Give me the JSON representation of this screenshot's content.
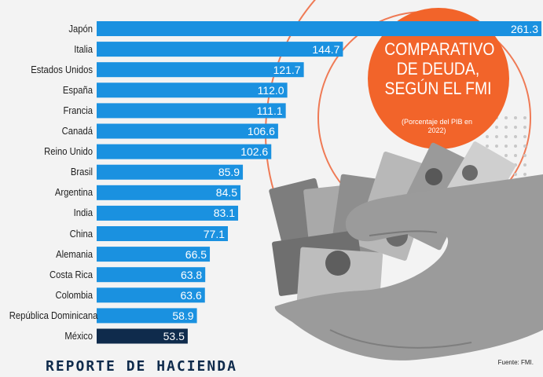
{
  "header": {
    "title": "COMPARATIVO DE DEUDA, SEGÚN EL FMI",
    "subtitle": "(Porcentaje del PIB en 2022)"
  },
  "footer": {
    "report": "REPORTE DE HACIENDA",
    "source": "Fuente: FMI."
  },
  "colors": {
    "bar": "#1a91e0",
    "highlight_bar": "#0f2b4c",
    "badge": "#f2642a",
    "accent_line": "#ef7a55"
  },
  "decor": {
    "illustration": "hand-holding-dollar-bills"
  },
  "chart_data": {
    "type": "bar",
    "orientation": "horizontal",
    "title": "COMPARATIVO DE DEUDA, SEGÚN EL FMI",
    "subtitle": "(Porcentaje del PIB en 2022)",
    "categories": [
      "Japón",
      "Italia",
      "Estados Unidos",
      "España",
      "Francia",
      "Canadá",
      "Reino Unido",
      "Brasil",
      "Argentina",
      "India",
      "China",
      "Alemania",
      "Costa Rica",
      "Colombia",
      "República Dominicana",
      "México"
    ],
    "values": [
      261.3,
      144.7,
      121.7,
      112.0,
      111.1,
      106.6,
      102.6,
      85.9,
      84.5,
      83.1,
      77.1,
      66.5,
      63.8,
      63.6,
      58.9,
      53.5
    ],
    "value_labels": [
      "261.3",
      "144.7",
      "121.7",
      "112.0",
      "111.1",
      "106.6",
      "102.6",
      "85.9",
      "84.5",
      "83.1",
      "77.1",
      "66.5",
      "63.8",
      "63.6",
      "58.9",
      "53.5"
    ],
    "highlight": "México",
    "xlim": [
      0,
      261.3
    ],
    "grid": false,
    "legend": "none",
    "xlabel": "",
    "ylabel": ""
  }
}
